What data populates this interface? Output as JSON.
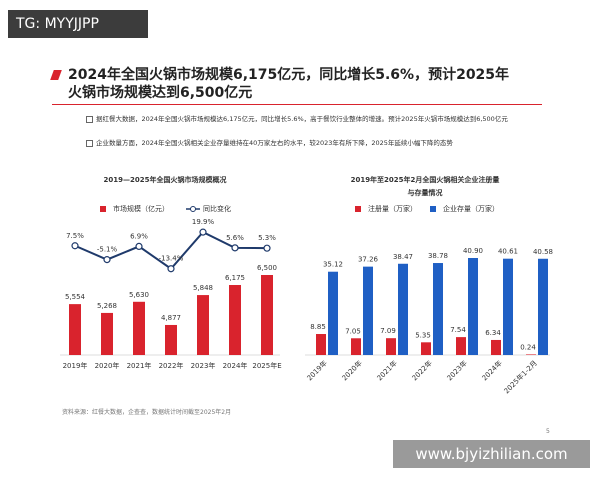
{
  "overlay": "TG: MYYJJPP",
  "header": {
    "title": [
      "2024年全国火锅市场规模6,175亿元，同比增长5.6%，预计2025年",
      "火锅市场规模达到6,500亿元"
    ]
  },
  "bullets": [
    "据红餐大数据，2024年全国火锅市场规模达6,175亿元，同比增长5.6%，高于餐饮行业整体的增速。预计2025年火锅市场规模达到6,500亿元",
    "企业数量方面，2024年全国火锅相关企业存量维持在40万家左右的水平，较2023年有所下降，2025年延续小幅下降的态势"
  ],
  "chart_data": [
    {
      "type": "combo",
      "title": [
        "2019—2025年全国火锅市场规模概况"
      ],
      "categories": [
        "2019年",
        "2020年",
        "2021年",
        "2022年",
        "2023年",
        "2024年",
        "2025年E"
      ],
      "series": [
        {
          "name": "市场规模（亿元）",
          "type": "bar",
          "color": "#d9232d",
          "values": [
            5554,
            5268,
            5630,
            4877,
            5848,
            6175,
            6500
          ],
          "value_labels": [
            "5,554",
            "5,268",
            "5,630",
            "4,877",
            "5,848",
            "6,175",
            "6,500"
          ]
        },
        {
          "name": "同比变化",
          "type": "line",
          "color": "#1f3a6b",
          "values": [
            7.5,
            -5.1,
            6.9,
            -13.4,
            19.9,
            5.6,
            5.3
          ],
          "value_labels": [
            "7.5%",
            "-5.1%",
            "6.9%",
            "-13.4%",
            "19.9%",
            "5.6%",
            "5.3%"
          ]
        }
      ]
    },
    {
      "type": "bar",
      "title": [
        "2019年至2025年2月全国火锅相关企业注册量",
        "与存量情况"
      ],
      "categories": [
        "2019年",
        "2020年",
        "2021年",
        "2022年",
        "2023年",
        "2024年",
        "2025年1-2月"
      ],
      "series": [
        {
          "name": "注册量（万家）",
          "color": "#d9232d",
          "values": [
            8.85,
            7.05,
            7.09,
            5.35,
            7.54,
            6.34,
            0.24
          ]
        },
        {
          "name": "企业存量（万家）",
          "color": "#1f5fc4",
          "values": [
            35.12,
            37.26,
            38.47,
            38.78,
            40.9,
            40.61,
            40.58
          ],
          "value_labels": [
            "35.12",
            "37.26",
            "38.47",
            "38.78",
            "40.90",
            "40.61",
            "40.58"
          ]
        }
      ]
    }
  ],
  "source": "资料来源：红餐大数据，企查查，数据统计时间截至2025年2月",
  "page_number": "5",
  "watermark": "www.bjyizhilian.com"
}
